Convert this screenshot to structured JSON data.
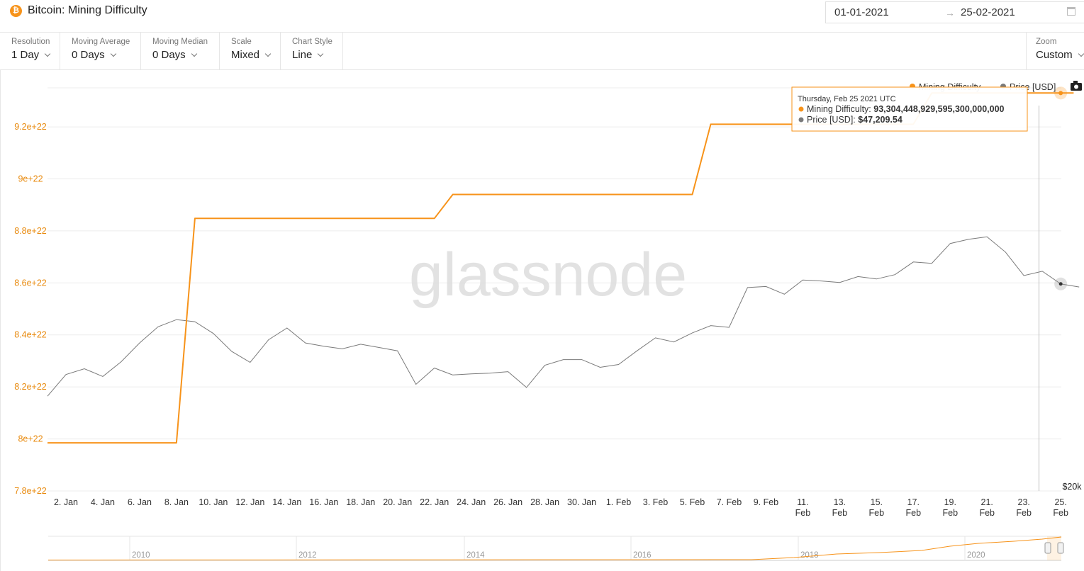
{
  "header": {
    "title": "Bitcoin: Mining Difficulty",
    "icon": "bitcoin-icon",
    "date_start": "01-01-2021",
    "date_end": "25-02-2021",
    "date_arrow": "→"
  },
  "controls": {
    "resolution": {
      "label": "Resolution",
      "value": "1 Day"
    },
    "moving_average": {
      "label": "Moving Average",
      "value": "0 Days"
    },
    "moving_median": {
      "label": "Moving Median",
      "value": "0 Days"
    },
    "scale": {
      "label": "Scale",
      "value": "Mixed"
    },
    "chart_style": {
      "label": "Chart Style",
      "value": "Line"
    },
    "zoom": {
      "label": "Zoom",
      "value": "Custom"
    }
  },
  "colors": {
    "difficulty": "#f7931a",
    "price": "#7a7a7a",
    "axis_label": "#e8890c"
  },
  "chart_data": {
    "type": "line",
    "watermark": "glassnode",
    "legend": {
      "position": "top-right",
      "items": [
        "Mining Difficulty",
        "Price [USD]"
      ]
    },
    "x_tick_labels": [
      "2. Jan",
      "4. Jan",
      "6. Jan",
      "8. Jan",
      "10. Jan",
      "12. Jan",
      "14. Jan",
      "16. Jan",
      "18. Jan",
      "20. Jan",
      "22. Jan",
      "24. Jan",
      "26. Jan",
      "28. Jan",
      "30. Jan",
      "1. Feb",
      "3. Feb",
      "5. Feb",
      "7. Feb",
      "9. Feb",
      "11. Feb",
      "13. Feb",
      "15. Feb",
      "17. Feb",
      "19. Feb",
      "21. Feb",
      "23. Feb",
      "25. Feb"
    ],
    "y_left_ticks": [
      "7.8e+22",
      "8e+22",
      "8.2e+22",
      "8.4e+22",
      "8.6e+22",
      "8.8e+22",
      "9e+22",
      "9.2e+22"
    ],
    "y_left_range": [
      7.8e+22,
      9.35e+22
    ],
    "y_right_label": "$20k",
    "series": [
      {
        "name": "Mining Difficulty",
        "axis": "left",
        "steps": [
          {
            "from": "2021-01-01",
            "value": 7.985e+22
          },
          {
            "from": "2021-01-09",
            "value": 8.848e+22
          },
          {
            "from": "2021-01-23",
            "value": 8.94e+22
          },
          {
            "from": "2021-02-06",
            "value": 9.21e+22
          },
          {
            "from": "2021-02-18",
            "value": 9.33e+22
          }
        ]
      },
      {
        "name": "Price [USD]",
        "axis": "right",
        "points": [
          [
            "2021-01-01",
            29400
          ],
          [
            "2021-01-02",
            32200
          ],
          [
            "2021-01-03",
            33000
          ],
          [
            "2021-01-04",
            31950
          ],
          [
            "2021-01-05",
            34000
          ],
          [
            "2021-01-06",
            36800
          ],
          [
            "2021-01-07",
            39400
          ],
          [
            "2021-01-08",
            40600
          ],
          [
            "2021-01-09",
            40250
          ],
          [
            "2021-01-10",
            38300
          ],
          [
            "2021-01-11",
            35500
          ],
          [
            "2021-01-12",
            33900
          ],
          [
            "2021-01-13",
            37300
          ],
          [
            "2021-01-14",
            39200
          ],
          [
            "2021-01-15",
            36800
          ],
          [
            "2021-01-16",
            36300
          ],
          [
            "2021-01-17",
            35900
          ],
          [
            "2021-01-18",
            36600
          ],
          [
            "2021-01-19",
            36100
          ],
          [
            "2021-01-20",
            35600
          ],
          [
            "2021-01-21",
            30900
          ],
          [
            "2021-01-22",
            33100
          ],
          [
            "2021-01-23",
            32150
          ],
          [
            "2021-01-24",
            32300
          ],
          [
            "2021-01-25",
            32400
          ],
          [
            "2021-01-26",
            32600
          ],
          [
            "2021-01-27",
            30500
          ],
          [
            "2021-01-28",
            33500
          ],
          [
            "2021-01-29",
            34300
          ],
          [
            "2021-01-30",
            34300
          ],
          [
            "2021-01-31",
            33200
          ],
          [
            "2021-02-01",
            33600
          ],
          [
            "2021-02-02",
            35600
          ],
          [
            "2021-02-03",
            37600
          ],
          [
            "2021-02-04",
            36950
          ],
          [
            "2021-02-05",
            38400
          ],
          [
            "2021-02-06",
            39600
          ],
          [
            "2021-02-07",
            39300
          ],
          [
            "2021-02-08",
            46500
          ],
          [
            "2021-02-09",
            46700
          ],
          [
            "2021-02-10",
            45200
          ],
          [
            "2021-02-11",
            48000
          ],
          [
            "2021-02-12",
            47800
          ],
          [
            "2021-02-13",
            47500
          ],
          [
            "2021-02-14",
            48700
          ],
          [
            "2021-02-15",
            48200
          ],
          [
            "2021-02-16",
            49100
          ],
          [
            "2021-02-17",
            51800
          ],
          [
            "2021-02-18",
            51500
          ],
          [
            "2021-02-19",
            56000
          ],
          [
            "2021-02-20",
            57000
          ],
          [
            "2021-02-21",
            57600
          ],
          [
            "2021-02-22",
            54000
          ],
          [
            "2021-02-23",
            48900
          ],
          [
            "2021-02-24",
            49800
          ],
          [
            "2021-02-25",
            47209.54
          ],
          [
            "2021-02-26",
            46600
          ]
        ]
      }
    ],
    "tooltip": {
      "date": "Thursday, Feb 25 2021 UTC",
      "difficulty_label": "Mining Difficulty:",
      "difficulty_value": "93,304,448,929,595,300,000,000",
      "price_label": "Price [USD]:",
      "price_value": "$47,209.54"
    },
    "navigator": {
      "years": [
        "2010",
        "2012",
        "2014",
        "2016",
        "2018",
        "2020"
      ]
    }
  }
}
